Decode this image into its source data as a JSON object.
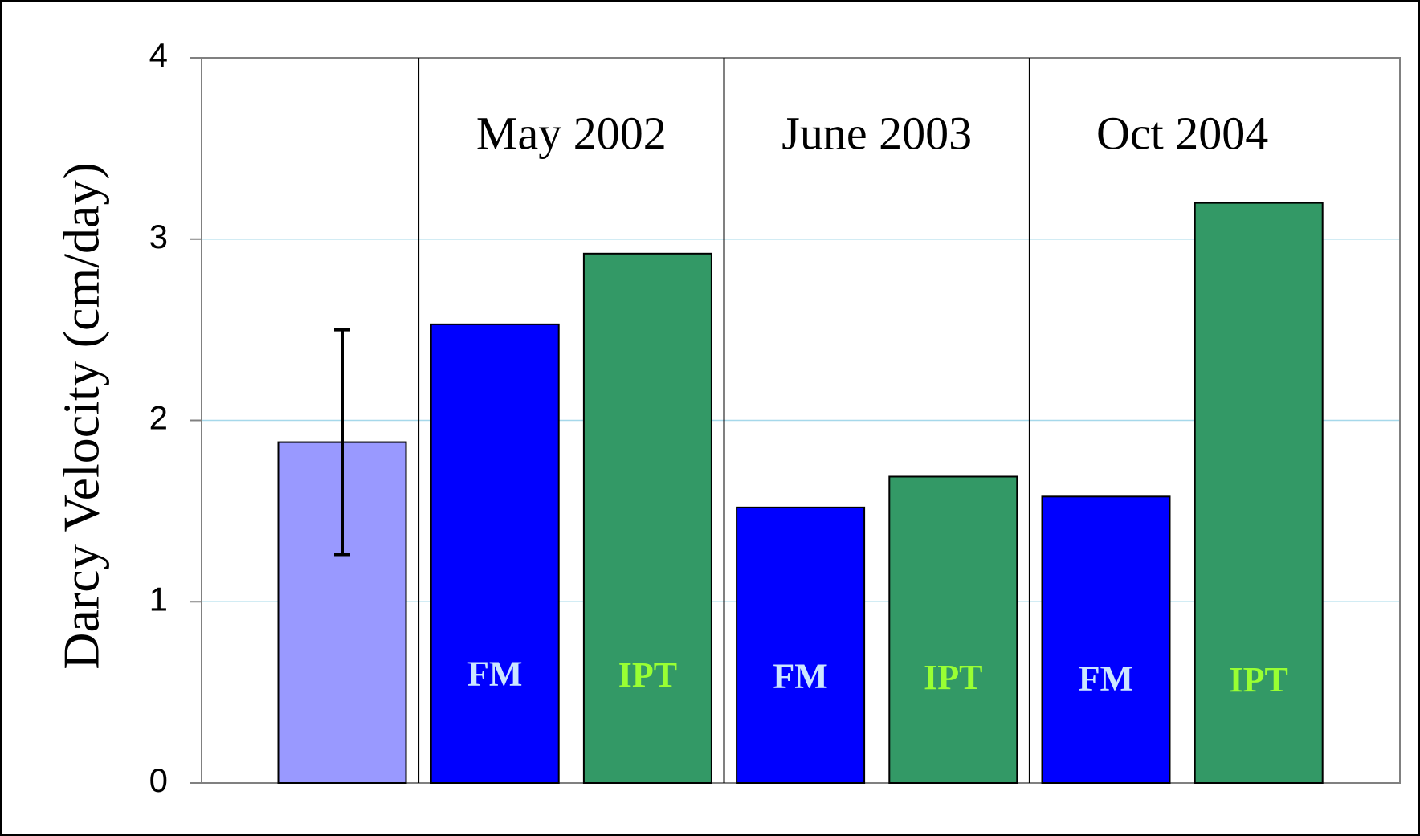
{
  "chart_data": {
    "type": "bar",
    "y_label": "Darcy Velocity (cm/day)",
    "categories": [
      null,
      null,
      null,
      null,
      null,
      null,
      null
    ],
    "values": [
      1.88,
      2.53,
      2.92,
      1.52,
      1.69,
      1.58,
      3.2
    ],
    "colors": [
      "#9999ff",
      "#0000ff",
      "#339966",
      "#0000ff",
      "#339966",
      "#0000ff",
      "#339966"
    ],
    "errors": [
      0.62,
      null,
      null,
      null,
      null,
      null,
      null
    ],
    "bar_labels": [
      null,
      "FM",
      "IPT",
      "FM",
      "IPT",
      "FM",
      "IPT"
    ],
    "bar_label_colors": [
      null,
      "#cce6ff",
      "#99ff33",
      "#cce6ff",
      "#99ff33",
      "#cce6ff",
      "#99ff33"
    ],
    "groups": [
      {
        "label": "May 2002",
        "bars": [
          1,
          2
        ]
      },
      {
        "label": "June 2003",
        "bars": [
          3,
          4
        ]
      },
      {
        "label": "Oct 2004",
        "bars": [
          5,
          6
        ]
      }
    ],
    "ylim": [
      0,
      4
    ],
    "yticks": [
      0,
      1,
      2,
      3,
      4
    ],
    "grid": true,
    "grid_color": "#a6d8ea"
  }
}
